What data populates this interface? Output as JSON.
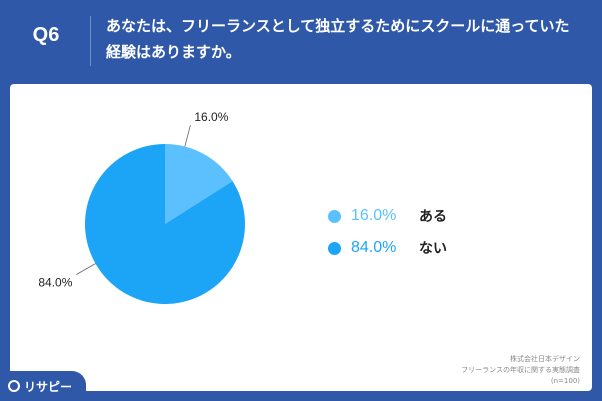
{
  "header": {
    "question_number": "Q6",
    "question_text": "あなたは、フリーランスとして独立するためにスクールに通っていた経験はありますか。"
  },
  "chart_data": {
    "type": "pie",
    "slices": [
      {
        "label": "ある",
        "value": 16.0,
        "display": "16.0%",
        "color": "#5cc0ff"
      },
      {
        "label": "ない",
        "value": 84.0,
        "display": "84.0%",
        "color": "#1ca4f7"
      }
    ]
  },
  "legend": {
    "items": [
      {
        "pct": "16.0%",
        "label": "ある",
        "color": "#5cc0ff"
      },
      {
        "pct": "84.0%",
        "label": "ない",
        "color": "#1ca4f7"
      }
    ]
  },
  "source": {
    "line1": "株式会社日本デザイン",
    "line2": "フリーランスの年収に関する実態調査",
    "line3": "(n=100)"
  },
  "brand": {
    "name": "リサピー"
  }
}
